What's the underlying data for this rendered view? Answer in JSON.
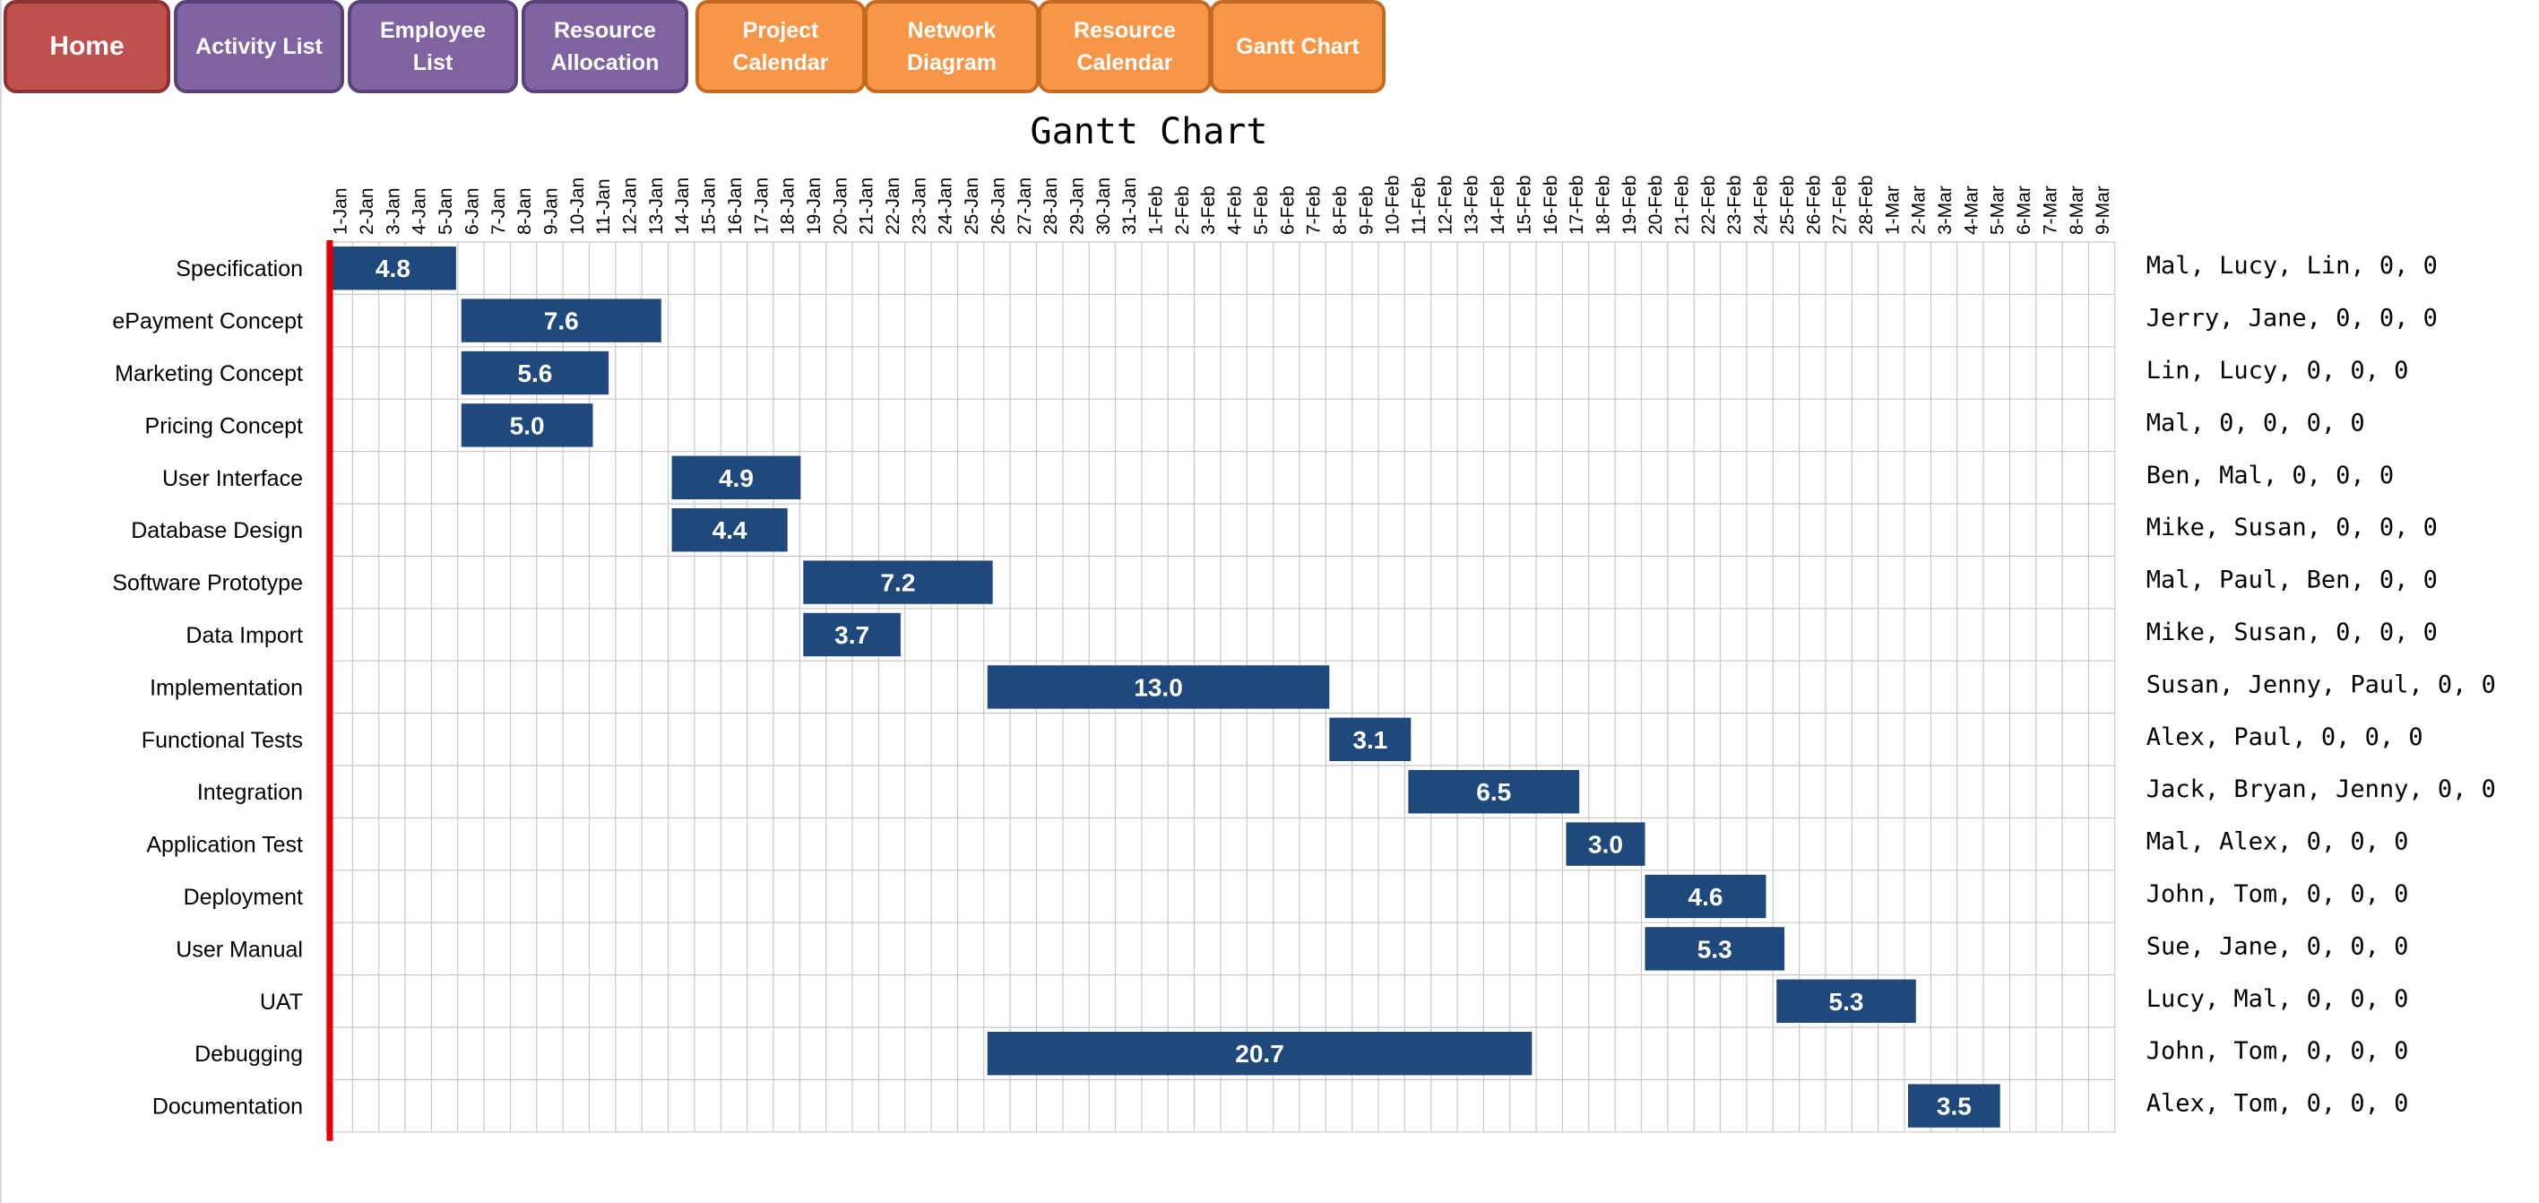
{
  "nav": {
    "buttons": [
      {
        "label": "Home",
        "color": "red"
      },
      {
        "label": "Activity List",
        "color": "purple"
      },
      {
        "label": "Employee\nList",
        "color": "purple"
      },
      {
        "label": "Resource\nAllocation",
        "color": "purple"
      },
      {
        "label": "Project\nCalendar",
        "color": "orange"
      },
      {
        "label": "Network\nDiagram",
        "color": "orange"
      },
      {
        "label": "Resource\nCalendar",
        "color": "orange"
      },
      {
        "label": "Gantt Chart",
        "color": "orange"
      }
    ]
  },
  "colors": {
    "bar": "#1f497d",
    "today_line": "#e00000",
    "grid": "#c8c8c8",
    "nav_red": "#c0504d",
    "nav_purple": "#8064a2",
    "nav_orange": "#f79646"
  },
  "chart_data": {
    "type": "gantt",
    "title": "Gantt Chart",
    "x_start": "1-Jan",
    "dates": [
      "1-Jan",
      "2-Jan",
      "3-Jan",
      "4-Jan",
      "5-Jan",
      "6-Jan",
      "7-Jan",
      "8-Jan",
      "9-Jan",
      "10-Jan",
      "11-Jan",
      "12-Jan",
      "13-Jan",
      "14-Jan",
      "15-Jan",
      "16-Jan",
      "17-Jan",
      "18-Jan",
      "19-Jan",
      "20-Jan",
      "21-Jan",
      "22-Jan",
      "23-Jan",
      "24-Jan",
      "25-Jan",
      "26-Jan",
      "27-Jan",
      "28-Jan",
      "29-Jan",
      "30-Jan",
      "31-Jan",
      "1-Feb",
      "2-Feb",
      "3-Feb",
      "4-Feb",
      "5-Feb",
      "6-Feb",
      "7-Feb",
      "8-Feb",
      "9-Feb",
      "10-Feb",
      "11-Feb",
      "12-Feb",
      "13-Feb",
      "14-Feb",
      "15-Feb",
      "16-Feb",
      "17-Feb",
      "18-Feb",
      "19-Feb",
      "20-Feb",
      "21-Feb",
      "22-Feb",
      "23-Feb",
      "24-Feb",
      "25-Feb",
      "26-Feb",
      "27-Feb",
      "28-Feb",
      "1-Mar",
      "2-Mar",
      "3-Mar",
      "4-Mar",
      "5-Mar",
      "6-Mar",
      "7-Mar",
      "8-Mar",
      "9-Mar"
    ],
    "today": "1-Jan",
    "tasks": [
      {
        "name": "Specification",
        "start": "1-Jan",
        "duration": 4.8,
        "resources": "Mal, Lucy, Lin, 0, 0"
      },
      {
        "name": "ePayment Concept",
        "start": "6-Jan",
        "duration": 7.6,
        "resources": "Jerry, Jane, 0, 0, 0"
      },
      {
        "name": "Marketing Concept",
        "start": "6-Jan",
        "duration": 5.6,
        "resources": "Lin, Lucy, 0, 0, 0"
      },
      {
        "name": "Pricing Concept",
        "start": "6-Jan",
        "duration": 5.0,
        "resources": "Mal, 0, 0, 0, 0"
      },
      {
        "name": "User Interface",
        "start": "14-Jan",
        "duration": 4.9,
        "resources": "Ben, Mal, 0, 0, 0"
      },
      {
        "name": "Database Design",
        "start": "14-Jan",
        "duration": 4.4,
        "resources": "Mike, Susan, 0, 0, 0"
      },
      {
        "name": "Software Prototype",
        "start": "19-Jan",
        "duration": 7.2,
        "resources": "Mal, Paul, Ben, 0, 0"
      },
      {
        "name": "Data Import",
        "start": "19-Jan",
        "duration": 3.7,
        "resources": "Mike, Susan, 0, 0, 0"
      },
      {
        "name": "Implementation",
        "start": "26-Jan",
        "duration": 13.0,
        "resources": "Susan, Jenny, Paul, 0, 0"
      },
      {
        "name": "Functional Tests",
        "start": "8-Feb",
        "duration": 3.1,
        "resources": "Alex, Paul, 0, 0, 0"
      },
      {
        "name": "Integration",
        "start": "11-Feb",
        "duration": 6.5,
        "resources": "Jack, Bryan, Jenny, 0, 0"
      },
      {
        "name": "Application Test",
        "start": "17-Feb",
        "duration": 3.0,
        "resources": "Mal, Alex, 0, 0, 0"
      },
      {
        "name": "Deployment",
        "start": "20-Feb",
        "duration": 4.6,
        "resources": "John, Tom, 0, 0, 0"
      },
      {
        "name": "User Manual",
        "start": "20-Feb",
        "duration": 5.3,
        "resources": "Sue, Jane, 0, 0, 0"
      },
      {
        "name": "UAT",
        "start": "25-Feb",
        "duration": 5.3,
        "resources": "Lucy, Mal, 0, 0, 0"
      },
      {
        "name": "Debugging",
        "start": "26-Jan",
        "duration": 20.7,
        "resources": "John, Tom, 0, 0, 0"
      },
      {
        "name": "Documentation",
        "start": "2-Mar",
        "duration": 3.5,
        "resources": "Alex, Tom, 0, 0, 0"
      }
    ]
  }
}
